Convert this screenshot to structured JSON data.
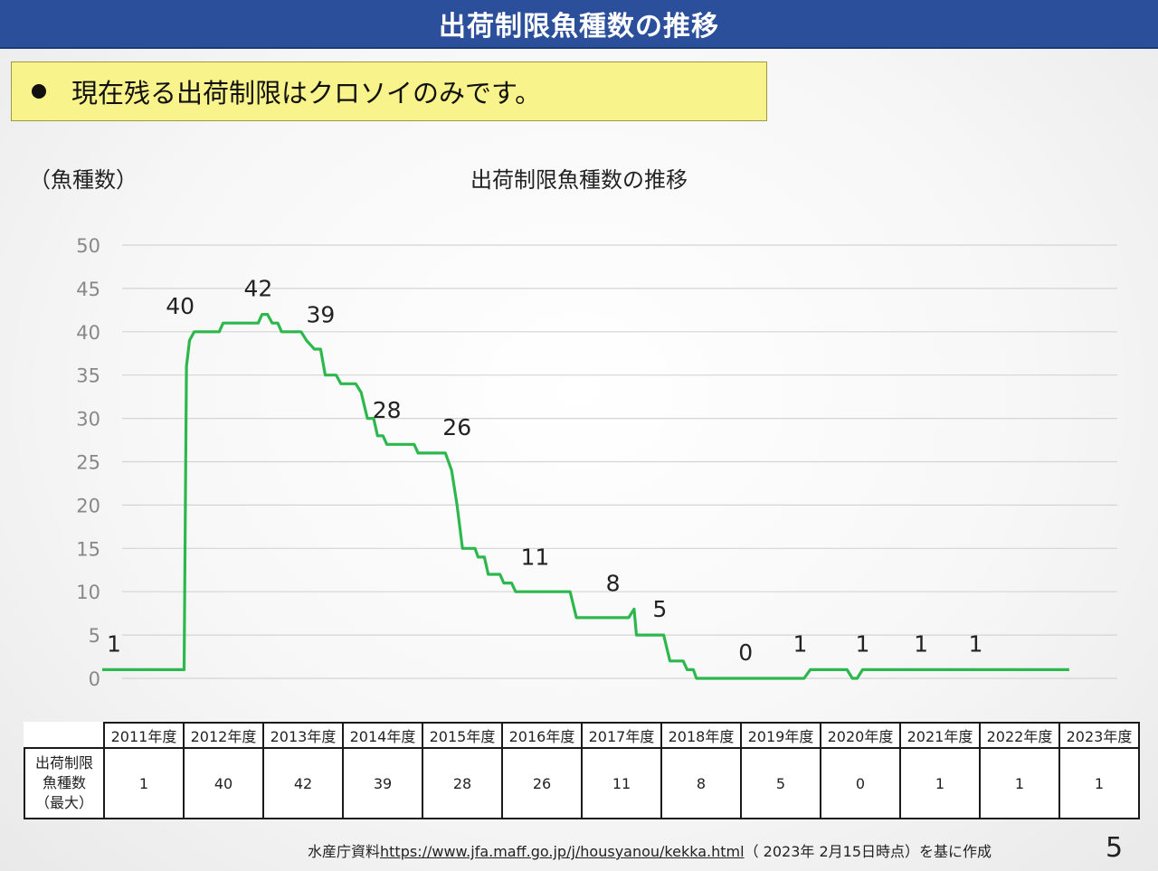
{
  "header": {
    "title": "出荷制限魚種数の推移"
  },
  "note": {
    "text": "現在残る出荷制限はクロソイのみです。"
  },
  "chart_data": {
    "type": "line",
    "title": "出荷制限魚種数の推移",
    "ylabel": "（魚種数）",
    "ylim": [
      0,
      50
    ],
    "yticks": [
      0,
      5,
      10,
      15,
      20,
      25,
      30,
      35,
      40,
      45,
      50
    ],
    "grid": true,
    "color": "#2db84d",
    "x_categories": [
      "2011年度",
      "2012年度",
      "2013年度",
      "2014年度",
      "2015年度",
      "2016年度",
      "2017年度",
      "2018年度",
      "2019年度",
      "2020年度",
      "2021年度",
      "2022年度",
      "2023年度"
    ],
    "series": [
      {
        "values": [
          [
            0.0,
            1
          ],
          [
            1.05,
            1
          ],
          [
            1.08,
            36
          ],
          [
            1.12,
            39
          ],
          [
            1.18,
            40
          ],
          [
            1.5,
            40
          ],
          [
            1.55,
            41
          ],
          [
            2.0,
            41
          ],
          [
            2.05,
            42
          ],
          [
            2.12,
            42
          ],
          [
            2.18,
            41
          ],
          [
            2.25,
            41
          ],
          [
            2.3,
            40
          ],
          [
            2.55,
            40
          ],
          [
            2.62,
            39
          ],
          [
            2.72,
            38
          ],
          [
            2.8,
            38
          ],
          [
            2.86,
            35
          ],
          [
            3.0,
            35
          ],
          [
            3.06,
            34
          ],
          [
            3.25,
            34
          ],
          [
            3.32,
            33
          ],
          [
            3.4,
            30
          ],
          [
            3.48,
            30
          ],
          [
            3.53,
            28
          ],
          [
            3.6,
            28
          ],
          [
            3.65,
            27
          ],
          [
            4.0,
            27
          ],
          [
            4.05,
            26
          ],
          [
            4.4,
            26
          ],
          [
            4.48,
            24
          ],
          [
            4.55,
            20
          ],
          [
            4.62,
            15
          ],
          [
            4.78,
            15
          ],
          [
            4.82,
            14
          ],
          [
            4.9,
            14
          ],
          [
            4.95,
            12
          ],
          [
            5.1,
            12
          ],
          [
            5.15,
            11
          ],
          [
            5.25,
            11
          ],
          [
            5.3,
            10
          ],
          [
            6.0,
            10
          ],
          [
            6.08,
            7
          ],
          [
            6.75,
            7
          ],
          [
            6.82,
            8
          ],
          [
            6.85,
            5
          ],
          [
            7.2,
            5
          ],
          [
            7.28,
            2
          ],
          [
            7.45,
            2
          ],
          [
            7.5,
            1
          ],
          [
            7.58,
            1
          ],
          [
            7.62,
            0
          ],
          [
            9.0,
            0
          ],
          [
            9.08,
            1
          ],
          [
            9.55,
            1
          ],
          [
            9.62,
            0
          ],
          [
            9.68,
            0
          ],
          [
            9.75,
            1
          ],
          [
            12.4,
            1
          ]
        ]
      }
    ],
    "annotations": [
      {
        "text": "1",
        "x": 0.15,
        "y": 1
      },
      {
        "text": "40",
        "x": 1.0,
        "y": 40
      },
      {
        "text": "42",
        "x": 2.0,
        "y": 42
      },
      {
        "text": "39",
        "x": 2.8,
        "y": 39
      },
      {
        "text": "28",
        "x": 3.65,
        "y": 28
      },
      {
        "text": "26",
        "x": 4.55,
        "y": 26
      },
      {
        "text": "11",
        "x": 5.55,
        "y": 11
      },
      {
        "text": "8",
        "x": 6.55,
        "y": 8
      },
      {
        "text": "5",
        "x": 7.15,
        "y": 5
      },
      {
        "text": "0",
        "x": 8.25,
        "y": 0
      },
      {
        "text": "1",
        "x": 8.95,
        "y": 1
      },
      {
        "text": "1",
        "x": 9.75,
        "y": 1
      },
      {
        "text": "1",
        "x": 10.5,
        "y": 1
      },
      {
        "text": "1",
        "x": 11.2,
        "y": 1
      }
    ]
  },
  "table": {
    "row_label_lines": [
      "出荷制限",
      "魚種数",
      "（最大）"
    ],
    "years": [
      "2011年度",
      "2012年度",
      "2013年度",
      "2014年度",
      "2015年度",
      "2016年度",
      "2017年度",
      "2018年度",
      "2019年度",
      "2020年度",
      "2021年度",
      "2022年度",
      "2023年度"
    ],
    "values": [
      "1",
      "40",
      "42",
      "39",
      "28",
      "26",
      "11",
      "8",
      "5",
      "0",
      "1",
      "1",
      "1"
    ]
  },
  "footer": {
    "prefix": "水産庁資料",
    "link": "https://www.jfa.maff.go.jp/j/housyanou/kekka.html",
    "suffix": "（ 2023年 2月15日時点）を基に作成"
  },
  "page_number": "5"
}
